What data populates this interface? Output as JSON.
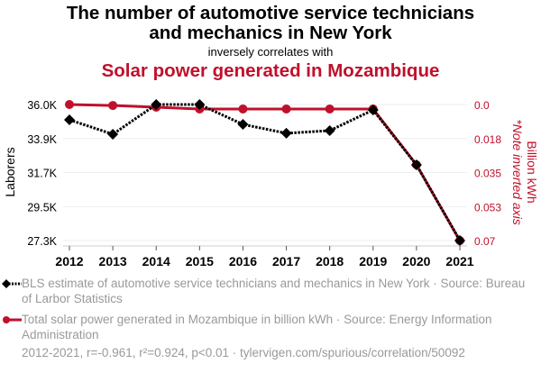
{
  "header": {
    "title_line1": "The number of automotive service technicians",
    "title_line2": "and mechanics in New York",
    "subtitle": "inversely correlates with",
    "title_red": "Solar power generated in Mozambique"
  },
  "legend": {
    "series1": "BLS estimate of automotive service technicians and mechanics in New York · Source: Bureau of Larbor Statistics",
    "series2": "Total solar power generated in Mozambique in billion kWh · Source: Energy Information Administration"
  },
  "footer": "2012-2021, r=-0.961, r²=0.924, p<0.01 · tylervigen.com/spurious/correlation/50092",
  "colors": {
    "series1": "#000000",
    "series2": "#c0102c",
    "grid": "#eeeeee",
    "legend_text": "#999999"
  },
  "chart_data": {
    "type": "line",
    "x": [
      "2012",
      "2013",
      "2014",
      "2015",
      "2016",
      "2017",
      "2018",
      "2019",
      "2020",
      "2021"
    ],
    "series": [
      {
        "name": "BLS estimate of automotive service technicians and mechanics in New York",
        "axis": "left",
        "style": "dotted",
        "marker": "diamond",
        "values": [
          35020,
          34100,
          36000,
          36000,
          34730,
          34160,
          34330,
          35650,
          32140,
          27300
        ]
      },
      {
        "name": "Total solar power generated in Mozambique in billion kWh",
        "axis": "right",
        "style": "solid",
        "marker": "circle",
        "values": [
          0.0,
          0.0005,
          0.0014,
          0.0023,
          0.0023,
          0.0023,
          0.0023,
          0.0023,
          0.031,
          0.07
        ]
      }
    ],
    "left_axis": {
      "label": "Laborers",
      "ticks": [
        "36.0K",
        "33.9K",
        "31.7K",
        "29.5K",
        "27.3K"
      ],
      "range": [
        27300,
        36000
      ]
    },
    "right_axis": {
      "label": "Billion kWh",
      "note": "*Note inverted axis",
      "ticks": [
        "0.0",
        "0.018",
        "0.035",
        "0.053",
        "0.07"
      ],
      "range": [
        0.0,
        0.07
      ],
      "inverted": true
    },
    "grid": true,
    "legend_position": "bottom"
  }
}
